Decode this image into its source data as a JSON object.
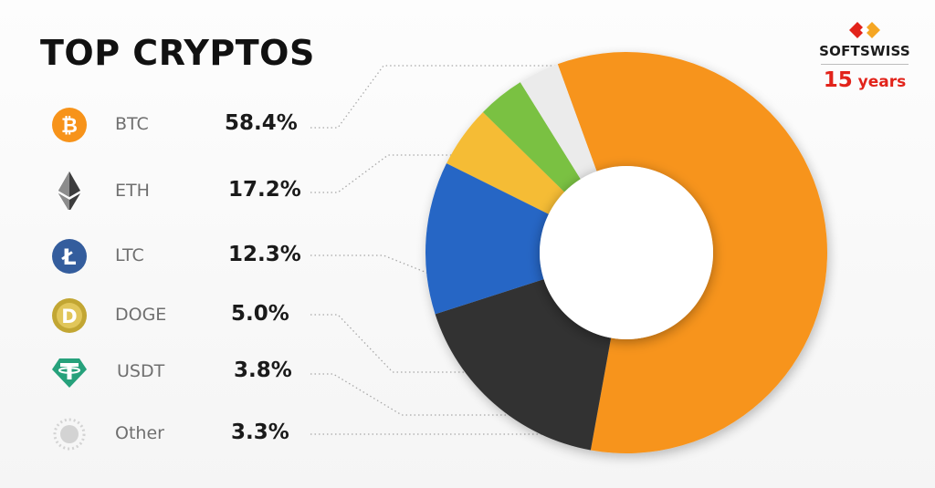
{
  "header": {
    "title": "TOP CRYPTOS"
  },
  "brand": {
    "name": "SOFTSWISS",
    "years_number": "15",
    "years_word": "years"
  },
  "colors": {
    "btc": "#f7941d",
    "eth": "#333333",
    "ltc": "#2566c5",
    "doge": "#f5bc34",
    "usdt": "#7ac143",
    "other": "#ebebeb",
    "brand_red": "#e2231a"
  },
  "chart_data": {
    "type": "pie",
    "variant": "donut",
    "categories": [
      "BTC",
      "ETH",
      "LTC",
      "DOGE",
      "USDT",
      "Other"
    ],
    "values": [
      58.4,
      17.2,
      12.3,
      5.0,
      3.8,
      3.3
    ],
    "value_labels": [
      "58.4%",
      "17.2%",
      "12.3%",
      "5.0%",
      "3.8%",
      "3.3%"
    ],
    "legend_icons": [
      "bitcoin-icon",
      "ethereum-icon",
      "litecoin-icon",
      "dogecoin-icon",
      "tether-icon",
      "other-icon"
    ],
    "legend_placement": "left",
    "title": "TOP CRYPTOS"
  }
}
